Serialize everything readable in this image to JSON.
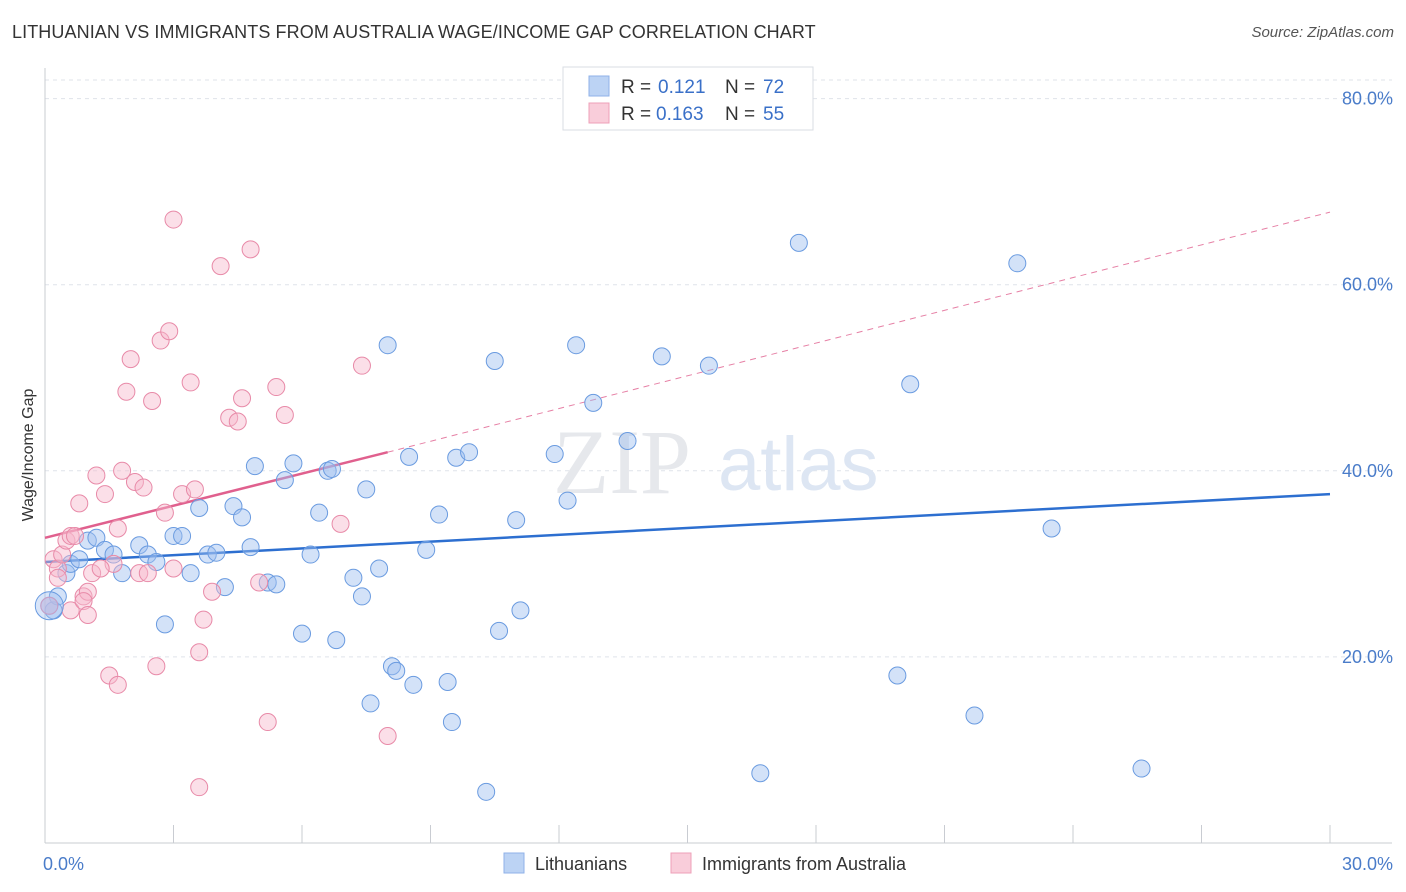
{
  "title": "LITHUANIAN VS IMMIGRANTS FROM AUSTRALIA WAGE/INCOME GAP CORRELATION CHART",
  "source": "Source: ZipAtlas.com",
  "watermark": {
    "zip": "ZIP",
    "atlas": "atlas"
  },
  "colors": {
    "blue": "#9dbff0",
    "blue_stroke": "#6a9be0",
    "blue_line": "#2d6fd0",
    "pink": "#f6b8cb",
    "pink_stroke": "#e88aa8",
    "pink_line": "#e0608e",
    "grid": "#dfe3ea",
    "axis_text": "#4a7cc9"
  },
  "legend": {
    "rows": [
      {
        "r_label": "R =",
        "r_value": "0.121",
        "n_label": "N =",
        "n_value": "72",
        "series": "blue"
      },
      {
        "r_label": "R =",
        "r_value": "0.163",
        "n_label": "N =",
        "n_value": "55",
        "series": "pink"
      }
    ]
  },
  "bottom_legend": [
    "Lithuanians",
    "Immigrants from Australia"
  ],
  "chart_data": {
    "type": "scatter",
    "title": "LITHUANIAN VS IMMIGRANTS FROM AUSTRALIA WAGE/INCOME GAP CORRELATION CHART",
    "xlabel": "",
    "ylabel": "Wage/Income Gap",
    "xlim": [
      0,
      30
    ],
    "ylim": [
      0,
      82
    ],
    "x_ticks": [
      0,
      3,
      6,
      9,
      12,
      15,
      18,
      21,
      24,
      27,
      30
    ],
    "x_tick_labels": {
      "0": "0.0%",
      "30": "30.0%"
    },
    "y_ticks": [
      20,
      40,
      60,
      80
    ],
    "y_tick_labels": [
      "20.0%",
      "40.0%",
      "60.0%",
      "80.0%"
    ],
    "series": [
      {
        "name": "Lithuanians",
        "color": "blue",
        "trend": {
          "x0": 0,
          "y0": 30.2,
          "x1": 30,
          "y1": 37.5,
          "dashed_to": null
        },
        "points": [
          [
            0.2,
            25.0
          ],
          [
            0.3,
            26.5
          ],
          [
            0.5,
            29.0
          ],
          [
            0.6,
            30.0
          ],
          [
            0.8,
            30.5
          ],
          [
            1.0,
            32.5
          ],
          [
            1.2,
            32.8
          ],
          [
            1.4,
            31.5
          ],
          [
            1.6,
            31.0
          ],
          [
            1.8,
            29.0
          ],
          [
            2.2,
            32.0
          ],
          [
            2.4,
            31.0
          ],
          [
            2.6,
            30.2
          ],
          [
            2.8,
            23.5
          ],
          [
            3.0,
            33.0
          ],
          [
            3.2,
            33.0
          ],
          [
            3.4,
            29.0
          ],
          [
            3.6,
            36.0
          ],
          [
            3.8,
            31.0
          ],
          [
            4.0,
            31.2
          ],
          [
            4.2,
            27.5
          ],
          [
            4.4,
            36.2
          ],
          [
            4.6,
            35.0
          ],
          [
            4.8,
            31.8
          ],
          [
            4.9,
            40.5
          ],
          [
            5.2,
            28.0
          ],
          [
            5.4,
            27.8
          ],
          [
            5.6,
            39.0
          ],
          [
            5.8,
            40.8
          ],
          [
            6.0,
            22.5
          ],
          [
            6.2,
            31.0
          ],
          [
            6.4,
            35.5
          ],
          [
            6.6,
            40.0
          ],
          [
            6.7,
            40.2
          ],
          [
            6.8,
            21.8
          ],
          [
            7.2,
            28.5
          ],
          [
            7.4,
            26.5
          ],
          [
            7.5,
            38.0
          ],
          [
            7.6,
            15.0
          ],
          [
            7.8,
            29.5
          ],
          [
            8.0,
            53.5
          ],
          [
            8.1,
            19.0
          ],
          [
            8.2,
            18.5
          ],
          [
            8.5,
            41.5
          ],
          [
            8.6,
            17.0
          ],
          [
            8.9,
            31.5
          ],
          [
            9.2,
            35.3
          ],
          [
            9.4,
            17.3
          ],
          [
            9.5,
            13.0
          ],
          [
            9.6,
            41.4
          ],
          [
            9.9,
            42.0
          ],
          [
            10.3,
            5.5
          ],
          [
            10.5,
            51.8
          ],
          [
            10.6,
            22.8
          ],
          [
            11.0,
            34.7
          ],
          [
            11.1,
            25.0
          ],
          [
            11.9,
            41.8
          ],
          [
            12.2,
            36.8
          ],
          [
            12.4,
            53.5
          ],
          [
            12.8,
            47.3
          ],
          [
            13.6,
            43.2
          ],
          [
            14.4,
            52.3
          ],
          [
            15.5,
            51.3
          ],
          [
            16.7,
            7.5
          ],
          [
            17.6,
            64.5
          ],
          [
            19.9,
            18.0
          ],
          [
            20.2,
            49.3
          ],
          [
            21.7,
            13.7
          ],
          [
            22.7,
            62.3
          ],
          [
            23.5,
            33.8
          ],
          [
            25.6,
            8.0
          ],
          [
            0.1,
            25.5
          ]
        ]
      },
      {
        "name": "Immigrants from Australia",
        "color": "pink",
        "trend": {
          "x0": 0,
          "y0": 32.8,
          "x1": 8.0,
          "y1": 42.0,
          "dashed_to": [
            30,
            67.8
          ]
        },
        "points": [
          [
            0.1,
            25.5
          ],
          [
            0.2,
            30.5
          ],
          [
            0.3,
            29.5
          ],
          [
            0.4,
            31.0
          ],
          [
            0.5,
            32.5
          ],
          [
            0.6,
            33.0
          ],
          [
            0.7,
            33.0
          ],
          [
            0.8,
            36.5
          ],
          [
            0.9,
            26.5
          ],
          [
            1.0,
            27.0
          ],
          [
            1.1,
            29.0
          ],
          [
            1.2,
            39.5
          ],
          [
            1.4,
            37.5
          ],
          [
            1.6,
            30.0
          ],
          [
            1.7,
            33.8
          ],
          [
            1.8,
            40.0
          ],
          [
            1.9,
            48.5
          ],
          [
            2.0,
            52.0
          ],
          [
            2.1,
            38.8
          ],
          [
            2.2,
            29.0
          ],
          [
            2.3,
            38.2
          ],
          [
            2.5,
            47.5
          ],
          [
            2.6,
            19.0
          ],
          [
            2.7,
            54.0
          ],
          [
            2.8,
            35.5
          ],
          [
            2.9,
            55.0
          ],
          [
            3.0,
            67.0
          ],
          [
            3.2,
            37.5
          ],
          [
            3.4,
            49.5
          ],
          [
            3.5,
            38.0
          ],
          [
            3.6,
            20.5
          ],
          [
            3.7,
            24.0
          ],
          [
            3.9,
            27.0
          ],
          [
            4.1,
            62.0
          ],
          [
            4.3,
            45.7
          ],
          [
            4.5,
            45.3
          ],
          [
            4.6,
            47.8
          ],
          [
            4.8,
            63.8
          ],
          [
            5.0,
            28.0
          ],
          [
            5.2,
            13.0
          ],
          [
            5.4,
            49.0
          ],
          [
            5.6,
            46.0
          ],
          [
            0.6,
            25.0
          ],
          [
            0.9,
            26.0
          ],
          [
            1.3,
            29.5
          ],
          [
            1.5,
            18.0
          ],
          [
            1.7,
            17.0
          ],
          [
            2.4,
            29.0
          ],
          [
            3.0,
            29.5
          ],
          [
            3.6,
            6.0
          ],
          [
            6.9,
            34.3
          ],
          [
            7.4,
            51.3
          ],
          [
            8.0,
            11.5
          ],
          [
            0.3,
            28.5
          ],
          [
            1.0,
            24.5
          ]
        ]
      }
    ]
  }
}
